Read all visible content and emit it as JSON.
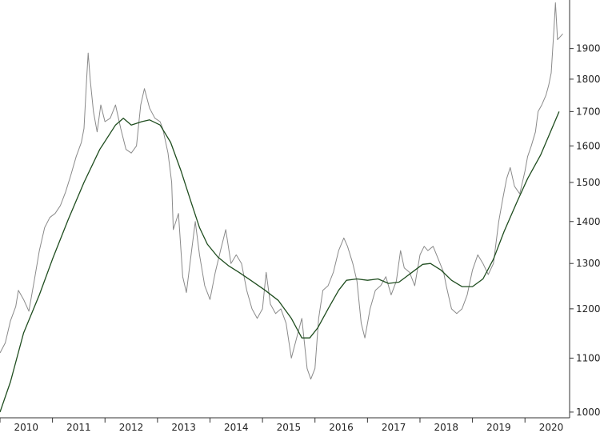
{
  "chart_data": {
    "type": "line",
    "title": "",
    "xlabel": "",
    "ylabel": "",
    "y_scale": "log",
    "xlim": [
      2010.0,
      2020.85
    ],
    "ylim": [
      990,
      2070
    ],
    "grid": false,
    "x_ticks": [
      2010,
      2011,
      2012,
      2013,
      2014,
      2015,
      2016,
      2017,
      2018,
      2019,
      2020
    ],
    "x_tick_labels": [
      "2010",
      "2011",
      "2012",
      "2013",
      "2014",
      "2015",
      "2016",
      "2017",
      "2018",
      "2019",
      "2020"
    ],
    "y_ticks": [
      1000,
      1100,
      1200,
      1300,
      1400,
      1500,
      1600,
      1700,
      1800,
      1900
    ],
    "y_tick_labels": [
      "1000",
      "1100",
      "1200",
      "1300",
      "1400",
      "1500",
      "1600",
      "1700",
      "1800",
      "1900"
    ],
    "series": [
      {
        "color": "#8a8a8a",
        "style": "price",
        "points": [
          [
            2010.0,
            1110
          ],
          [
            2010.1,
            1130
          ],
          [
            2010.2,
            1175
          ],
          [
            2010.3,
            1205
          ],
          [
            2010.35,
            1240
          ],
          [
            2010.45,
            1220
          ],
          [
            2010.55,
            1195
          ],
          [
            2010.65,
            1260
          ],
          [
            2010.75,
            1330
          ],
          [
            2010.85,
            1385
          ],
          [
            2010.95,
            1410
          ],
          [
            2011.05,
            1420
          ],
          [
            2011.15,
            1440
          ],
          [
            2011.25,
            1475
          ],
          [
            2011.35,
            1520
          ],
          [
            2011.45,
            1570
          ],
          [
            2011.55,
            1610
          ],
          [
            2011.6,
            1650
          ],
          [
            2011.65,
            1800
          ],
          [
            2011.68,
            1885
          ],
          [
            2011.72,
            1795
          ],
          [
            2011.78,
            1700
          ],
          [
            2011.85,
            1640
          ],
          [
            2011.92,
            1720
          ],
          [
            2012.0,
            1670
          ],
          [
            2012.1,
            1680
          ],
          [
            2012.2,
            1720
          ],
          [
            2012.3,
            1650
          ],
          [
            2012.4,
            1590
          ],
          [
            2012.5,
            1580
          ],
          [
            2012.6,
            1600
          ],
          [
            2012.68,
            1720
          ],
          [
            2012.75,
            1770
          ],
          [
            2012.85,
            1710
          ],
          [
            2012.95,
            1680
          ],
          [
            2013.05,
            1670
          ],
          [
            2013.1,
            1650
          ],
          [
            2013.2,
            1580
          ],
          [
            2013.27,
            1500
          ],
          [
            2013.3,
            1380
          ],
          [
            2013.4,
            1420
          ],
          [
            2013.48,
            1270
          ],
          [
            2013.55,
            1235
          ],
          [
            2013.65,
            1330
          ],
          [
            2013.72,
            1400
          ],
          [
            2013.8,
            1320
          ],
          [
            2013.9,
            1250
          ],
          [
            2014.0,
            1220
          ],
          [
            2014.1,
            1280
          ],
          [
            2014.2,
            1330
          ],
          [
            2014.3,
            1380
          ],
          [
            2014.4,
            1300
          ],
          [
            2014.5,
            1320
          ],
          [
            2014.6,
            1300
          ],
          [
            2014.7,
            1240
          ],
          [
            2014.8,
            1200
          ],
          [
            2014.9,
            1180
          ],
          [
            2015.0,
            1200
          ],
          [
            2015.07,
            1280
          ],
          [
            2015.15,
            1210
          ],
          [
            2015.25,
            1190
          ],
          [
            2015.35,
            1200
          ],
          [
            2015.45,
            1170
          ],
          [
            2015.55,
            1100
          ],
          [
            2015.65,
            1140
          ],
          [
            2015.75,
            1180
          ],
          [
            2015.85,
            1080
          ],
          [
            2015.92,
            1060
          ],
          [
            2016.0,
            1080
          ],
          [
            2016.07,
            1180
          ],
          [
            2016.15,
            1240
          ],
          [
            2016.25,
            1250
          ],
          [
            2016.35,
            1280
          ],
          [
            2016.45,
            1330
          ],
          [
            2016.55,
            1360
          ],
          [
            2016.62,
            1340
          ],
          [
            2016.72,
            1300
          ],
          [
            2016.8,
            1260
          ],
          [
            2016.88,
            1170
          ],
          [
            2016.95,
            1140
          ],
          [
            2017.05,
            1200
          ],
          [
            2017.15,
            1240
          ],
          [
            2017.25,
            1250
          ],
          [
            2017.35,
            1270
          ],
          [
            2017.45,
            1230
          ],
          [
            2017.55,
            1260
          ],
          [
            2017.63,
            1330
          ],
          [
            2017.7,
            1290
          ],
          [
            2017.8,
            1280
          ],
          [
            2017.9,
            1250
          ],
          [
            2018.0,
            1320
          ],
          [
            2018.08,
            1340
          ],
          [
            2018.15,
            1330
          ],
          [
            2018.25,
            1340
          ],
          [
            2018.35,
            1310
          ],
          [
            2018.45,
            1280
          ],
          [
            2018.5,
            1250
          ],
          [
            2018.6,
            1200
          ],
          [
            2018.7,
            1190
          ],
          [
            2018.8,
            1200
          ],
          [
            2018.9,
            1230
          ],
          [
            2019.0,
            1285
          ],
          [
            2019.1,
            1320
          ],
          [
            2019.2,
            1300
          ],
          [
            2019.3,
            1275
          ],
          [
            2019.4,
            1300
          ],
          [
            2019.5,
            1400
          ],
          [
            2019.58,
            1460
          ],
          [
            2019.65,
            1510
          ],
          [
            2019.72,
            1540
          ],
          [
            2019.8,
            1490
          ],
          [
            2019.9,
            1470
          ],
          [
            2020.0,
            1530
          ],
          [
            2020.05,
            1570
          ],
          [
            2020.12,
            1600
          ],
          [
            2020.2,
            1640
          ],
          [
            2020.25,
            1700
          ],
          [
            2020.32,
            1720
          ],
          [
            2020.4,
            1750
          ],
          [
            2020.45,
            1780
          ],
          [
            2020.5,
            1820
          ],
          [
            2020.55,
            1960
          ],
          [
            2020.58,
            2060
          ],
          [
            2020.62,
            1930
          ],
          [
            2020.67,
            1940
          ],
          [
            2020.72,
            1950
          ]
        ]
      },
      {
        "color": "#1f4d1f",
        "style": "moving-average",
        "points": [
          [
            2010.0,
            1000
          ],
          [
            2010.2,
            1055
          ],
          [
            2010.45,
            1150
          ],
          [
            2010.75,
            1230
          ],
          [
            2011.0,
            1310
          ],
          [
            2011.3,
            1405
          ],
          [
            2011.6,
            1500
          ],
          [
            2011.9,
            1590
          ],
          [
            2012.2,
            1660
          ],
          [
            2012.35,
            1680
          ],
          [
            2012.5,
            1660
          ],
          [
            2012.7,
            1670
          ],
          [
            2012.85,
            1675
          ],
          [
            2013.05,
            1660
          ],
          [
            2013.25,
            1610
          ],
          [
            2013.45,
            1530
          ],
          [
            2013.65,
            1445
          ],
          [
            2013.8,
            1385
          ],
          [
            2013.95,
            1345
          ],
          [
            2014.15,
            1315
          ],
          [
            2014.35,
            1295
          ],
          [
            2014.55,
            1280
          ],
          [
            2014.8,
            1260
          ],
          [
            2015.05,
            1240
          ],
          [
            2015.3,
            1218
          ],
          [
            2015.55,
            1180
          ],
          [
            2015.75,
            1140
          ],
          [
            2015.9,
            1140
          ],
          [
            2016.05,
            1160
          ],
          [
            2016.25,
            1200
          ],
          [
            2016.45,
            1240
          ],
          [
            2016.6,
            1262
          ],
          [
            2016.8,
            1265
          ],
          [
            2017.0,
            1262
          ],
          [
            2017.2,
            1265
          ],
          [
            2017.4,
            1255
          ],
          [
            2017.6,
            1258
          ],
          [
            2017.85,
            1280
          ],
          [
            2018.05,
            1298
          ],
          [
            2018.2,
            1300
          ],
          [
            2018.4,
            1285
          ],
          [
            2018.6,
            1262
          ],
          [
            2018.8,
            1248
          ],
          [
            2019.0,
            1248
          ],
          [
            2019.2,
            1265
          ],
          [
            2019.4,
            1310
          ],
          [
            2019.6,
            1375
          ],
          [
            2019.85,
            1450
          ],
          [
            2020.05,
            1510
          ],
          [
            2020.3,
            1575
          ],
          [
            2020.5,
            1645
          ],
          [
            2020.65,
            1700
          ]
        ]
      }
    ]
  }
}
